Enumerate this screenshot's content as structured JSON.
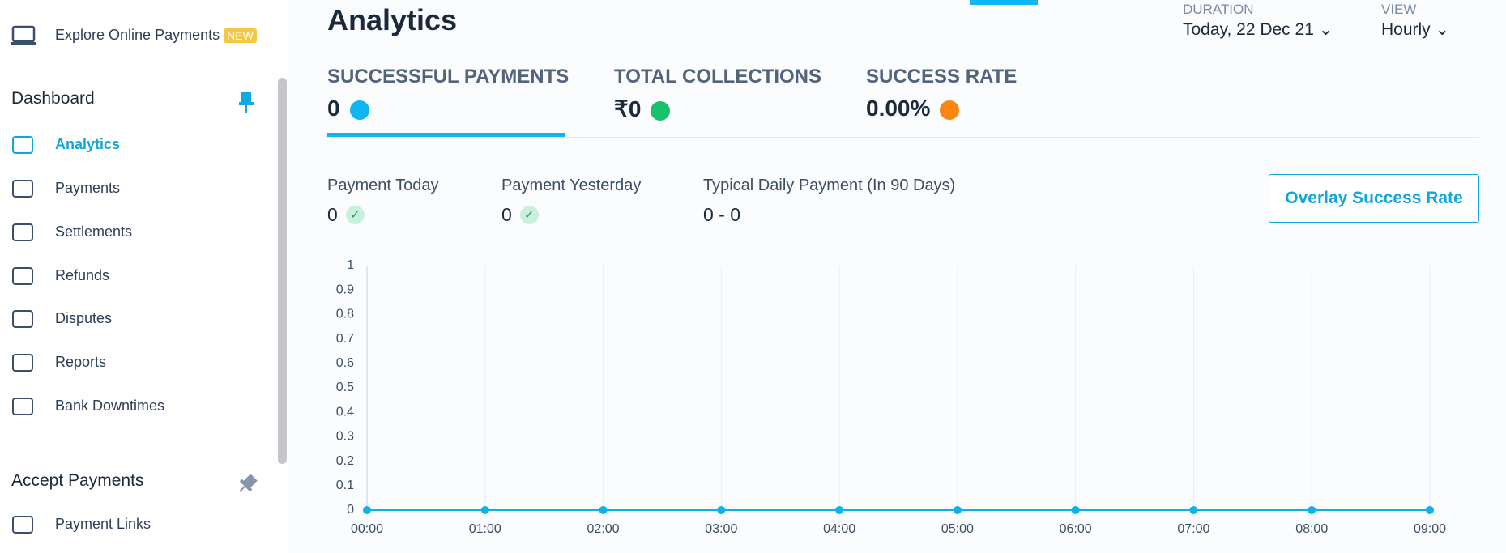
{
  "sidebar": {
    "explore": "Explore Online Payments",
    "badge": "NEW",
    "sections": [
      {
        "title": "Dashboard",
        "items": [
          "Analytics",
          "Payments",
          "Settlements",
          "Refunds",
          "Disputes",
          "Reports",
          "Bank Downtimes"
        ]
      },
      {
        "title": "Accept Payments",
        "items": [
          "Payment Links"
        ]
      }
    ]
  },
  "header": {
    "title": "Analytics",
    "duration_label": "DURATION",
    "duration": "Today, 22 Dec 21",
    "view_label": "VIEW",
    "view": "Hourly"
  },
  "tabs": [
    {
      "label": "SUCCESSFUL PAYMENTS",
      "value": "0",
      "color": "#11b5ef"
    },
    {
      "label": "TOTAL COLLECTIONS",
      "value": "₹0",
      "color": "#16c26b"
    },
    {
      "label": "SUCCESS RATE",
      "value": "0.00%",
      "color": "#fb8513"
    }
  ],
  "stats": [
    {
      "label": "Payment Today",
      "value": "0"
    },
    {
      "label": "Payment Yesterday",
      "value": "0"
    },
    {
      "label": "Typical Daily Payment (In 90 Days)",
      "value": "0 - 0"
    }
  ],
  "button": "Overlay Success Rate",
  "chart_data": {
    "type": "line",
    "categories": [
      "00:00",
      "01:00",
      "02:00",
      "03:00",
      "04:00",
      "05:00",
      "06:00",
      "07:00",
      "08:00",
      "09:00"
    ],
    "series": [
      {
        "color": "#0db3e8",
        "values": [
          0,
          0,
          0,
          0,
          0,
          0,
          0,
          0,
          0,
          0
        ]
      }
    ],
    "ylim": [
      0,
      1
    ],
    "yticks": [
      0,
      0.1,
      0.2,
      0.3,
      0.4,
      0.5,
      0.6,
      0.7,
      0.8,
      0.9,
      1
    ],
    "grid": true
  }
}
